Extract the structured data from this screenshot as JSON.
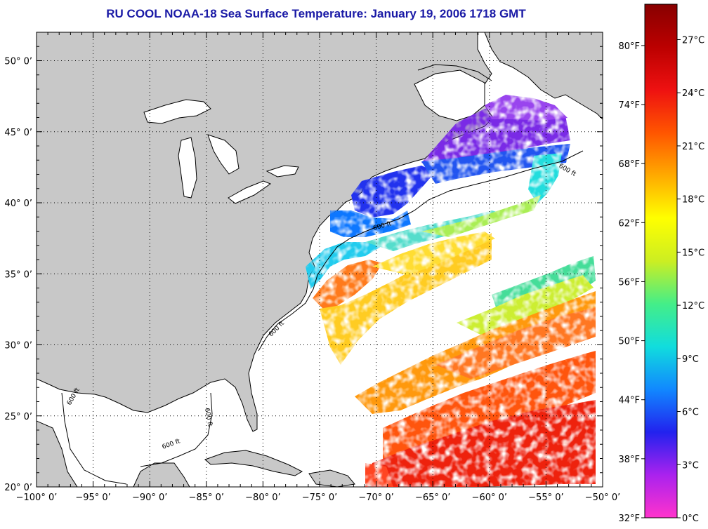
{
  "title": "RU COOL  NOAA-18  Sea Surface Temperature:  January 19, 2006 1718 GMT",
  "map": {
    "lon_range": [
      -100,
      -50
    ],
    "lat_range": [
      20,
      52
    ],
    "x_ticks": [
      {
        "value": -100,
        "label": "−100° 0’"
      },
      {
        "value": -95,
        "label": "−95° 0’"
      },
      {
        "value": -90,
        "label": "−90° 0’"
      },
      {
        "value": -85,
        "label": "−85° 0’"
      },
      {
        "value": -80,
        "label": "−80° 0’"
      },
      {
        "value": -75,
        "label": "−75° 0’"
      },
      {
        "value": -70,
        "label": "−70° 0’"
      },
      {
        "value": -65,
        "label": "−65° 0’"
      },
      {
        "value": -60,
        "label": "−60° 0’"
      },
      {
        "value": -55,
        "label": "−55° 0’"
      },
      {
        "value": -50,
        "label": "−50° 0’"
      }
    ],
    "y_ticks": [
      {
        "value": 50,
        "label": "50° 0’"
      },
      {
        "value": 45,
        "label": "45° 0’"
      },
      {
        "value": 40,
        "label": "40° 0’"
      },
      {
        "value": 35,
        "label": "35° 0’"
      },
      {
        "value": 30,
        "label": "30° 0’"
      },
      {
        "value": 25,
        "label": "25° 0’"
      },
      {
        "value": 20,
        "label": "20° 0’"
      }
    ],
    "grid": "dotted",
    "land_color": "#c8c8c8",
    "isobath_label": "600 ft",
    "isobath_count": 6
  },
  "colorbar": {
    "celsius_range": [
      0,
      29
    ],
    "fahrenheit_ticks": [
      "80°F",
      "74°F",
      "68°F",
      "62°F",
      "56°F",
      "50°F",
      "44°F",
      "38°F",
      "32°F"
    ],
    "fahrenheit_values": [
      80,
      74,
      68,
      62,
      56,
      50,
      44,
      38,
      32
    ],
    "celsius_ticks": [
      "27°C",
      "24°C",
      "21°C",
      "18°C",
      "15°C",
      "12°C",
      "9°C",
      "6°C",
      "3°C",
      "0°C"
    ],
    "celsius_values": [
      27,
      24,
      21,
      18,
      15,
      12,
      9,
      6,
      3,
      0
    ],
    "stops": [
      "#ff33cc",
      "#aa22ee",
      "#2222ee",
      "#1188ff",
      "#11dddd",
      "#44ee88",
      "#ccee22",
      "#ffff00",
      "#ffaa00",
      "#ff5500",
      "#ee1111",
      "#bb0000",
      "#880000"
    ]
  }
}
